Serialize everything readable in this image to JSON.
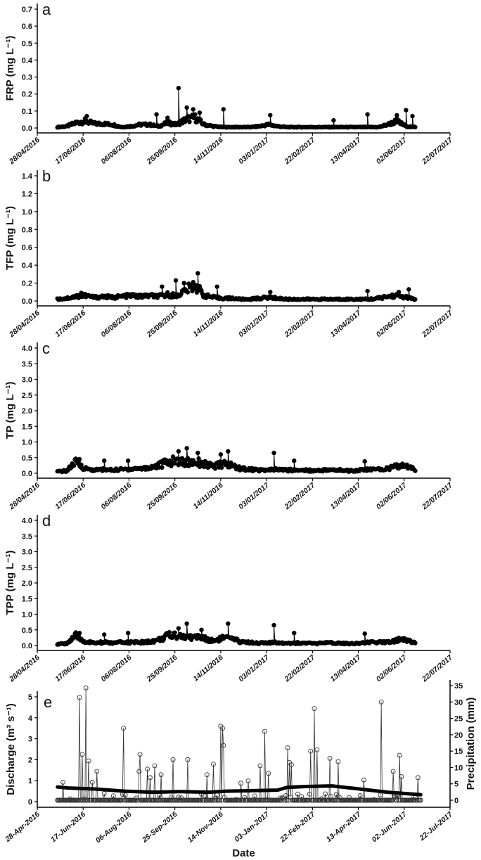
{
  "chart_data": [
    {
      "type": "line",
      "panel_label": "a",
      "ylabel": "FRP (mg L⁻¹)",
      "ylim": [
        0,
        0.7
      ],
      "yticks": [
        "0.0",
        "0.1",
        "0.2",
        "0.3",
        "0.4",
        "0.5",
        "0.6",
        "0.7"
      ],
      "ytick_step": 0.1,
      "xlim": [
        "28/04/2016",
        "22/07/2017"
      ],
      "xticks": [
        "28/04/2016",
        "17/06/2016",
        "06/08/2016",
        "25/09/2016",
        "14/11/2016",
        "03/01/2017",
        "22/02/2017",
        "13/04/2017",
        "02/06/2017",
        "22/07/2017"
      ],
      "marker": "filled-circle",
      "color": "#000000",
      "baseline": [
        0.005,
        0.01,
        0.03,
        0.04,
        0.025,
        0.025,
        0.02,
        0.005,
        0.01,
        0.02,
        0.02,
        0.01,
        0.03,
        0.02,
        0.05,
        0.06,
        0.02,
        0.01,
        0.005,
        0.005,
        0.005,
        0.005,
        0.01,
        0.02,
        0.01,
        0.005,
        0.005,
        0.005,
        0.005,
        0.005,
        0.005,
        0.005,
        0.005,
        0.005,
        0.005,
        0.005,
        0.02,
        0.04,
        0.01,
        0.005
      ],
      "peaks": [
        [
          "21/06/2016",
          0.07
        ],
        [
          "05/09/2016",
          0.08
        ],
        [
          "17/09/2016",
          0.06
        ],
        [
          "29/09/2016",
          0.235
        ],
        [
          "08/10/2016",
          0.12
        ],
        [
          "15/10/2016",
          0.11
        ],
        [
          "22/10/2016",
          0.09
        ],
        [
          "17/11/2016",
          0.11
        ],
        [
          "07/01/2017",
          0.075
        ],
        [
          "17/03/2017",
          0.045
        ],
        [
          "23/04/2017",
          0.08
        ],
        [
          "25/05/2017",
          0.075
        ],
        [
          "04/06/2017",
          0.105
        ],
        [
          "11/06/2017",
          0.07
        ]
      ]
    },
    {
      "type": "line",
      "panel_label": "b",
      "ylabel": "TFP (mg L⁻¹)",
      "ylim": [
        0,
        1.4
      ],
      "yticks": [
        "0.0",
        "0.2",
        "0.4",
        "0.6",
        "0.8",
        "1.0",
        "1.2",
        "1.4"
      ],
      "ytick_step": 0.2,
      "xlim": [
        "28/04/2016",
        "22/07/2017"
      ],
      "xticks": [
        "28/04/2016",
        "17/06/2016",
        "06/08/2016",
        "25/09/2016",
        "14/11/2016",
        "03/01/2017",
        "22/02/2017",
        "13/04/2017",
        "02/06/2017",
        "22/07/2017"
      ],
      "marker": "filled-circle",
      "color": "#000000",
      "baseline": [
        0.02,
        0.03,
        0.05,
        0.06,
        0.04,
        0.05,
        0.04,
        0.05,
        0.06,
        0.05,
        0.06,
        0.05,
        0.07,
        0.06,
        0.12,
        0.18,
        0.06,
        0.04,
        0.03,
        0.03,
        0.02,
        0.02,
        0.03,
        0.04,
        0.03,
        0.02,
        0.02,
        0.02,
        0.02,
        0.02,
        0.02,
        0.02,
        0.02,
        0.02,
        0.02,
        0.03,
        0.05,
        0.06,
        0.04,
        0.02
      ],
      "peaks": [
        [
          "15/06/2016",
          0.09
        ],
        [
          "11/09/2016",
          0.16
        ],
        [
          "26/09/2016",
          0.23
        ],
        [
          "05/10/2016",
          0.2
        ],
        [
          "20/10/2016",
          0.31
        ],
        [
          "10/11/2016",
          0.16
        ],
        [
          "07/01/2017",
          0.1
        ],
        [
          "23/04/2017",
          0.11
        ],
        [
          "27/05/2017",
          0.1
        ],
        [
          "07/06/2017",
          0.13
        ]
      ]
    },
    {
      "type": "line",
      "panel_label": "c",
      "ylabel": "TP (mg L⁻¹)",
      "ylim": [
        0,
        4.0
      ],
      "yticks": [
        "0.0",
        "0.5",
        "1.0",
        "1.5",
        "2.0",
        "2.5",
        "3.0",
        "3.5",
        "4.0"
      ],
      "ytick_step": 0.5,
      "xlim": [
        "28/04/2016",
        "22/07/2017"
      ],
      "xticks": [
        "28/04/2016",
        "17/06/2016",
        "06/08/2016",
        "25/09/2016",
        "14/11/2016",
        "03/01/2017",
        "22/02/2017",
        "13/04/2017",
        "02/06/2017",
        "22/07/2017"
      ],
      "marker": "filled-circle",
      "color": "#000000",
      "baseline": [
        0.05,
        0.08,
        0.35,
        0.15,
        0.1,
        0.12,
        0.1,
        0.12,
        0.14,
        0.15,
        0.18,
        0.25,
        0.35,
        0.4,
        0.35,
        0.38,
        0.3,
        0.2,
        0.3,
        0.25,
        0.15,
        0.12,
        0.1,
        0.1,
        0.12,
        0.1,
        0.1,
        0.1,
        0.08,
        0.1,
        0.1,
        0.1,
        0.08,
        0.1,
        0.12,
        0.12,
        0.15,
        0.22,
        0.25,
        0.1
      ],
      "peaks": [
        [
          "13/06/2016",
          0.45
        ],
        [
          "10/07/2016",
          0.4
        ],
        [
          "05/08/2016",
          0.4
        ],
        [
          "29/09/2016",
          0.7
        ],
        [
          "08/10/2016",
          0.8
        ],
        [
          "20/10/2016",
          0.65
        ],
        [
          "14/11/2016",
          0.6
        ],
        [
          "22/11/2016",
          0.7
        ],
        [
          "11/01/2017",
          0.65
        ],
        [
          "02/02/2017",
          0.4
        ],
        [
          "20/04/2017",
          0.38
        ]
      ]
    },
    {
      "type": "line",
      "panel_label": "d",
      "ylabel": "TPP (mg L⁻¹)",
      "ylim": [
        0,
        4.0
      ],
      "yticks": [
        "0.0",
        "0.5",
        "1.0",
        "1.5",
        "2.0",
        "2.5",
        "3.0",
        "3.5",
        "4.0"
      ],
      "ytick_step": 0.5,
      "xlim": [
        "28/04/2016",
        "22/07/2017"
      ],
      "xticks": [
        "28/04/2016",
        "17/06/2016",
        "06/08/2016",
        "25/09/2016",
        "14/11/2016",
        "03/01/2017",
        "22/02/2017",
        "13/04/2017",
        "02/06/2017",
        "22/07/2017"
      ],
      "marker": "filled-circle",
      "color": "#000000",
      "baseline": [
        0.04,
        0.07,
        0.3,
        0.12,
        0.08,
        0.1,
        0.08,
        0.1,
        0.1,
        0.1,
        0.12,
        0.18,
        0.3,
        0.35,
        0.25,
        0.3,
        0.22,
        0.15,
        0.25,
        0.2,
        0.12,
        0.1,
        0.08,
        0.08,
        0.1,
        0.08,
        0.08,
        0.08,
        0.06,
        0.08,
        0.08,
        0.08,
        0.06,
        0.08,
        0.1,
        0.1,
        0.12,
        0.18,
        0.2,
        0.08
      ],
      "peaks": [
        [
          "13/06/2016",
          0.4
        ],
        [
          "10/07/2016",
          0.35
        ],
        [
          "05/08/2016",
          0.4
        ],
        [
          "29/09/2016",
          0.55
        ],
        [
          "08/10/2016",
          0.7
        ],
        [
          "24/10/2016",
          0.5
        ],
        [
          "22/11/2016",
          0.7
        ],
        [
          "11/01/2017",
          0.65
        ],
        [
          "02/02/2017",
          0.4
        ],
        [
          "20/04/2017",
          0.38
        ]
      ]
    },
    {
      "type": "line",
      "panel_label": "e",
      "xlabel": "Date",
      "ylabel": "Discharge (m³ s⁻¹)",
      "ylabel_right": "Precipitation (mm)",
      "ylim": [
        0,
        5.4
      ],
      "yticks": [
        "0",
        "1",
        "2",
        "3",
        "4",
        "5"
      ],
      "ytick_step": 1,
      "ylim_right": [
        0,
        35
      ],
      "yticks_right": [
        "0",
        "5",
        "10",
        "15",
        "20",
        "25",
        "30",
        "35"
      ],
      "ytick_step_right": 5,
      "xlim": [
        "28-Apr-2016",
        "22-Jul-2017"
      ],
      "xticks": [
        "28-Apr-2016",
        "17-Jun-2016",
        "06-Aug-2016",
        "25-Sep-2016",
        "14-Nov-2016",
        "03-Jan-2017",
        "22-Feb-2017",
        "13-Apr-2017",
        "02-Jun-2017",
        "22-Jul-2017"
      ],
      "discharge": {
        "marker": "thick-line",
        "color": "#000000",
        "x": [
          "20/05/2016",
          "01/06/2016",
          "01/07/2016",
          "01/08/2016",
          "01/09/2016",
          "01/10/2016",
          "01/11/2016",
          "20/11/2016",
          "15/12/2016",
          "15/01/2017",
          "25/01/2017",
          "15/02/2017",
          "15/03/2017",
          "15/04/2017",
          "15/05/2017",
          "20/06/2017"
        ],
        "values": [
          0.7,
          0.65,
          0.6,
          0.5,
          0.45,
          0.48,
          0.45,
          0.5,
          0.52,
          0.55,
          0.68,
          0.72,
          0.75,
          0.6,
          0.45,
          0.33
        ]
      },
      "precipitation": {
        "marker": "open-circle",
        "color": "#444444",
        "peaks": [
          [
            "26/05/2016",
            5.5
          ],
          [
            "13/06/2016",
            31.4
          ],
          [
            "16/06/2016",
            14
          ],
          [
            "20/06/2016",
            34.3
          ],
          [
            "23/06/2016",
            12
          ],
          [
            "27/06/2016",
            5.5
          ],
          [
            "02/07/2016",
            8.8
          ],
          [
            "10/07/2016",
            2
          ],
          [
            "31/07/2016",
            22
          ],
          [
            "17/08/2016",
            8.8
          ],
          [
            "18/08/2016",
            14
          ],
          [
            "26/08/2016",
            9.5
          ],
          [
            "29/08/2016",
            6.9
          ],
          [
            "03/09/2016",
            10.5
          ],
          [
            "10/09/2016",
            7.8
          ],
          [
            "23/09/2016",
            12.4
          ],
          [
            "09/10/2016",
            12.4
          ],
          [
            "30/10/2016",
            7.8
          ],
          [
            "06/11/2016",
            11
          ],
          [
            "14/11/2016",
            22.6
          ],
          [
            "16/11/2016",
            22
          ],
          [
            "17/11/2016",
            16.7
          ],
          [
            "06/12/2016",
            5.2
          ],
          [
            "14/12/2016",
            5.9
          ],
          [
            "27/12/2016",
            10.5
          ],
          [
            "01/01/2017",
            21
          ],
          [
            "05/01/2017",
            8.2
          ],
          [
            "26/01/2017",
            16
          ],
          [
            "28/01/2017",
            11.5
          ],
          [
            "30/01/2017",
            10.8
          ],
          [
            "20/02/2017",
            15
          ],
          [
            "24/02/2017",
            28
          ],
          [
            "27/02/2017",
            15.4
          ],
          [
            "13/03/2017",
            12.8
          ],
          [
            "22/03/2017",
            11.8
          ],
          [
            "19/04/2017",
            6.2
          ],
          [
            "08/05/2017",
            30
          ],
          [
            "21/05/2017",
            8.8
          ],
          [
            "28/05/2017",
            13.7
          ],
          [
            "30/05/2017",
            7.2
          ],
          [
            "17/06/2017",
            6.9
          ]
        ]
      }
    }
  ]
}
